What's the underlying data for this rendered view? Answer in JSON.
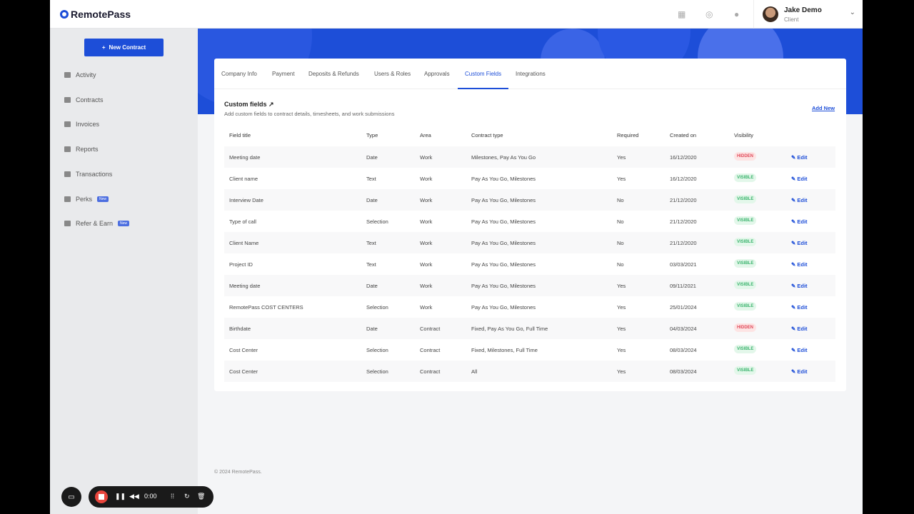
{
  "brand": "RemotePass",
  "header": {
    "user_name": "Jake Demo",
    "user_role": "Client",
    "icons": [
      "calendar-icon",
      "globe-icon",
      "bell-icon"
    ]
  },
  "sidebar": {
    "new_contract": "New Contract",
    "items": [
      {
        "label": "Activity",
        "icon": "home-icon"
      },
      {
        "label": "Contracts",
        "icon": "contract-icon"
      },
      {
        "label": "Invoices",
        "icon": "invoice-icon"
      },
      {
        "label": "Reports",
        "icon": "pie-icon"
      },
      {
        "label": "Transactions",
        "icon": "transfer-icon"
      },
      {
        "label": "Perks",
        "icon": "grid-icon",
        "badge": "New"
      },
      {
        "label": "Refer & Earn",
        "icon": "gift-icon",
        "badge": "New"
      }
    ]
  },
  "tabs": [
    "Company Info",
    "Payment",
    "Deposits & Refunds",
    "Users & Roles",
    "Approvals",
    "Custom Fields",
    "Integrations"
  ],
  "active_tab": "Custom Fields",
  "section": {
    "title": "Custom fields",
    "subtitle": "Add custom fields to contract details, timesheets, and work submissions",
    "add_new": "Add New"
  },
  "table": {
    "headers": [
      "Field title",
      "Type",
      "Area",
      "Contract type",
      "Required",
      "Created on",
      "Visibility"
    ],
    "edit_label": "Edit",
    "rows": [
      [
        "Meeting date",
        "Date",
        "Work",
        "Milestones, Pay As You Go",
        "Yes",
        "16/12/2020",
        "HIDDEN"
      ],
      [
        "Client name",
        "Text",
        "Work",
        "Pay As You Go, Milestones",
        "Yes",
        "16/12/2020",
        "VISIBLE"
      ],
      [
        "Interview Date",
        "Date",
        "Work",
        "Pay As You Go, Milestones",
        "No",
        "21/12/2020",
        "VISIBLE"
      ],
      [
        "Type of call",
        "Selection",
        "Work",
        "Pay As You Go, Milestones",
        "No",
        "21/12/2020",
        "VISIBLE"
      ],
      [
        "Client Name",
        "Text",
        "Work",
        "Pay As You Go, Milestones",
        "No",
        "21/12/2020",
        "VISIBLE"
      ],
      [
        "Project ID",
        "Text",
        "Work",
        "Pay As You Go, Milestones",
        "No",
        "03/03/2021",
        "VISIBLE"
      ],
      [
        "Meeting date",
        "Date",
        "Work",
        "Pay As You Go, Milestones",
        "Yes",
        "09/11/2021",
        "VISIBLE"
      ],
      [
        "RemotePass COST CENTERS",
        "Selection",
        "Work",
        "Pay As You Go, Milestones",
        "Yes",
        "25/01/2024",
        "VISIBLE"
      ],
      [
        "Birthdate",
        "Date",
        "Contract",
        "Fixed, Pay As You Go, Full Time",
        "Yes",
        "04/03/2024",
        "HIDDEN"
      ],
      [
        "Cost Center",
        "Selection",
        "Contract",
        "Fixed, Milestones, Full Time",
        "Yes",
        "08/03/2024",
        "VISIBLE"
      ],
      [
        "Cost Center",
        "Selection",
        "Contract",
        "All",
        "Yes",
        "08/03/2024",
        "VISIBLE"
      ]
    ]
  },
  "footer": "© 2024 RemotePass.",
  "recorder": {
    "time": "0:00"
  }
}
